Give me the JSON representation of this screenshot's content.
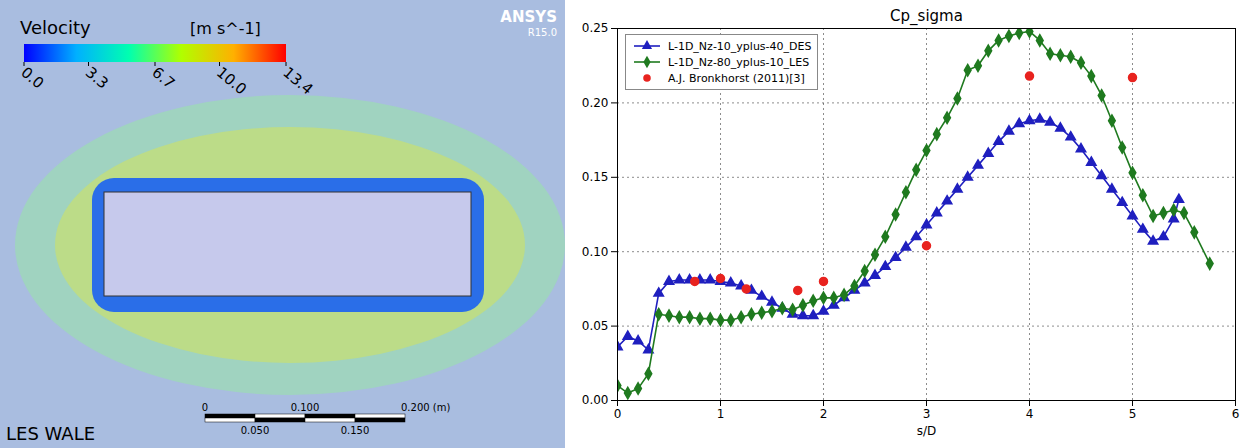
{
  "figure_panel": {
    "title": "Velocity",
    "unit": "[m s^-1]",
    "colorbar_range": [
      0,
      13.4
    ],
    "colorbar_ticks": [
      {
        "value": 0,
        "label": "0.0"
      },
      3.3,
      6.7,
      {
        "value": 10,
        "label": "10.0"
      },
      13.4
    ],
    "logo": "ANSYS",
    "version": "R15.0",
    "caption": "LES WALE",
    "scale_bar_labels": [
      "0",
      "0.100",
      "0.200 (m)"
    ],
    "scale_bar_minor_labels": [
      "0.050",
      "0.150"
    ]
  },
  "chart_data": {
    "type": "line",
    "title": "Cp_sigma",
    "x_label": "s/D",
    "xlim": [
      0,
      6
    ],
    "xticks": [
      0,
      1,
      2,
      3,
      4,
      5,
      6
    ],
    "ylim": [
      0,
      0.25
    ],
    "yticks": [
      {
        "value": 0,
        "label": "0.00"
      },
      0.05,
      {
        "value": 0.1,
        "label": "0.10"
      },
      0.15,
      {
        "value": 0.2,
        "label": "0.20"
      },
      0.25
    ],
    "grid": true,
    "legend": "upper left",
    "series": [
      {
        "name": "L-1D_Nz-10_yplus-40_DES",
        "color": "#1f1fbf",
        "type": "line",
        "marker": "triangle",
        "line_style": "solid",
        "x": [
          0,
          0.1,
          0.2,
          0.3,
          0.4,
          0.5,
          0.6,
          0.7,
          0.8,
          0.9,
          1.0,
          1.1,
          1.2,
          1.3,
          1.4,
          1.5,
          1.6,
          1.7,
          1.8,
          1.9,
          2.0,
          2.1,
          2.2,
          2.3,
          2.4,
          2.5,
          2.6,
          2.7,
          2.8,
          2.9,
          3.0,
          3.1,
          3.2,
          3.3,
          3.4,
          3.5,
          3.6,
          3.7,
          3.8,
          3.9,
          4.0,
          4.1,
          4.2,
          4.3,
          4.4,
          4.5,
          4.6,
          4.7,
          4.8,
          4.9,
          5.0,
          5.1,
          5.2,
          5.3,
          5.4,
          5.45
        ],
        "values": [
          0.036,
          0.043,
          0.04,
          0.034,
          0.072,
          0.08,
          0.081,
          0.081,
          0.081,
          0.081,
          0.08,
          0.079,
          0.077,
          0.074,
          0.07,
          0.066,
          0.062,
          0.058,
          0.057,
          0.057,
          0.06,
          0.064,
          0.069,
          0.074,
          0.079,
          0.084,
          0.09,
          0.096,
          0.103,
          0.11,
          0.118,
          0.126,
          0.134,
          0.142,
          0.15,
          0.158,
          0.166,
          0.174,
          0.181,
          0.186,
          0.188,
          0.189,
          0.187,
          0.183,
          0.177,
          0.169,
          0.16,
          0.151,
          0.142,
          0.133,
          0.124,
          0.115,
          0.107,
          0.11,
          0.122,
          0.135
        ]
      },
      {
        "name": "L-1D_Nz-80_yplus-10_LES",
        "color": "#1f7a1f",
        "type": "line",
        "marker": "diamond",
        "line_style": "solid",
        "x": [
          0,
          0.1,
          0.2,
          0.3,
          0.4,
          0.5,
          0.6,
          0.7,
          0.8,
          0.9,
          1.0,
          1.1,
          1.2,
          1.3,
          1.4,
          1.5,
          1.6,
          1.7,
          1.8,
          1.9,
          2.0,
          2.1,
          2.2,
          2.3,
          2.4,
          2.5,
          2.6,
          2.7,
          2.8,
          2.9,
          3.0,
          3.1,
          3.2,
          3.3,
          3.4,
          3.5,
          3.6,
          3.7,
          3.8,
          3.9,
          4.0,
          4.1,
          4.2,
          4.3,
          4.4,
          4.5,
          4.6,
          4.7,
          4.8,
          4.9,
          5.0,
          5.1,
          5.2,
          5.3,
          5.4,
          5.5,
          5.6,
          5.75
        ],
        "values": [
          0.01,
          0.005,
          0.008,
          0.018,
          0.058,
          0.057,
          0.056,
          0.056,
          0.055,
          0.055,
          0.054,
          0.054,
          0.056,
          0.058,
          0.059,
          0.06,
          0.062,
          0.061,
          0.064,
          0.067,
          0.069,
          0.069,
          0.071,
          0.077,
          0.087,
          0.098,
          0.11,
          0.125,
          0.14,
          0.155,
          0.168,
          0.179,
          0.19,
          0.203,
          0.222,
          0.225,
          0.235,
          0.242,
          0.245,
          0.247,
          0.248,
          0.242,
          0.233,
          0.232,
          0.231,
          0.227,
          0.218,
          0.205,
          0.188,
          0.17,
          0.153,
          0.138,
          0.124,
          0.126,
          0.128,
          0.126,
          0.113,
          0.092
        ]
      },
      {
        "name": "A.J. Bronkhorst (2011)[3]",
        "color": "#e8231f",
        "type": "scatter",
        "marker": "circle",
        "x": [
          0.75,
          1.0,
          1.25,
          1.75,
          2.0,
          3.0,
          4.0,
          5.0
        ],
        "values": [
          0.08,
          0.082,
          0.075,
          0.074,
          0.08,
          0.104,
          0.218,
          0.217
        ]
      }
    ]
  }
}
